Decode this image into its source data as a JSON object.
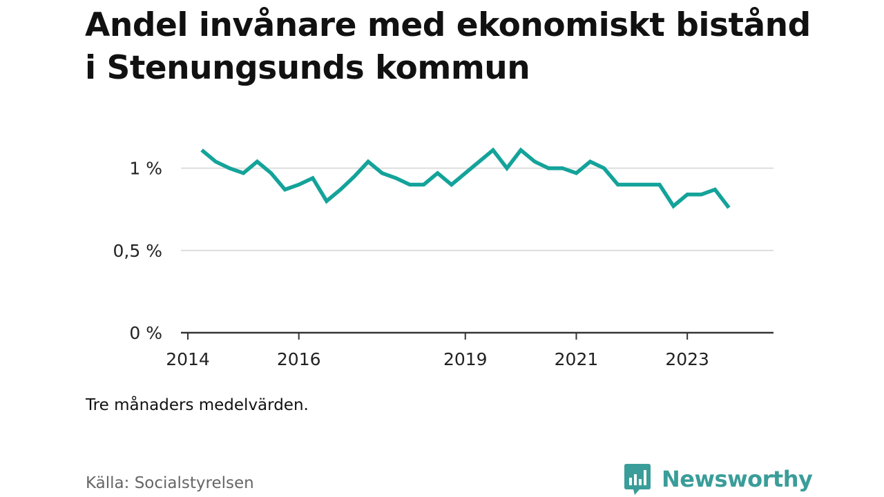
{
  "title": "Andel invånare med ekonomiskt bistånd i Stenungsunds kommun",
  "subtitle": "Tre månaders medelvärden.",
  "source": "Källa: Socialstyrelsen",
  "brand": {
    "name": "Newsworthy",
    "logo_icon": "bar-chart-bubble-icon",
    "color": "#3a9d99"
  },
  "chart_data": {
    "type": "line",
    "title": "Andel invånare med ekonomiskt bistånd i Stenungsunds kommun",
    "xlabel": "",
    "ylabel": "",
    "ylim": [
      0,
      1.2
    ],
    "xlim": [
      "2014-01",
      "2024-06"
    ],
    "grid": true,
    "line_color": "#14a39a",
    "y_ticks": [
      {
        "value": 0,
        "label": "0 %"
      },
      {
        "value": 0.5,
        "label": "0,5 %"
      },
      {
        "value": 1,
        "label": "1 %"
      }
    ],
    "x_ticks": [
      {
        "date": "2014-01",
        "label": "2014"
      },
      {
        "date": "2016-01",
        "label": "2016"
      },
      {
        "date": "2019-01",
        "label": "2019"
      },
      {
        "date": "2021-01",
        "label": "2021"
      },
      {
        "date": "2023-01",
        "label": "2023"
      }
    ],
    "series": [
      {
        "values": [
          {
            "x": "2014-04",
            "y": 1.11
          },
          {
            "x": "2014-07",
            "y": 1.04
          },
          {
            "x": "2014-10",
            "y": 1.0
          },
          {
            "x": "2015-01",
            "y": 0.97
          },
          {
            "x": "2015-04",
            "y": 1.04
          },
          {
            "x": "2015-07",
            "y": 0.97
          },
          {
            "x": "2015-10",
            "y": 0.87
          },
          {
            "x": "2016-01",
            "y": 0.9
          },
          {
            "x": "2016-04",
            "y": 0.94
          },
          {
            "x": "2016-07",
            "y": 0.8
          },
          {
            "x": "2016-10",
            "y": 0.87
          },
          {
            "x": "2017-01",
            "y": 0.95
          },
          {
            "x": "2017-04",
            "y": 1.04
          },
          {
            "x": "2017-07",
            "y": 0.97
          },
          {
            "x": "2017-10",
            "y": 0.94
          },
          {
            "x": "2018-01",
            "y": 0.9
          },
          {
            "x": "2018-04",
            "y": 0.9
          },
          {
            "x": "2018-07",
            "y": 0.97
          },
          {
            "x": "2018-10",
            "y": 0.9
          },
          {
            "x": "2019-01",
            "y": 0.97
          },
          {
            "x": "2019-04",
            "y": 1.04
          },
          {
            "x": "2019-07",
            "y": 1.11
          },
          {
            "x": "2019-10",
            "y": 1.0
          },
          {
            "x": "2020-01",
            "y": 1.11
          },
          {
            "x": "2020-04",
            "y": 1.04
          },
          {
            "x": "2020-07",
            "y": 1.0
          },
          {
            "x": "2020-10",
            "y": 1.0
          },
          {
            "x": "2021-01",
            "y": 0.97
          },
          {
            "x": "2021-04",
            "y": 1.04
          },
          {
            "x": "2021-07",
            "y": 1.0
          },
          {
            "x": "2021-10",
            "y": 0.9
          },
          {
            "x": "2022-01",
            "y": 0.9
          },
          {
            "x": "2022-04",
            "y": 0.9
          },
          {
            "x": "2022-07",
            "y": 0.9
          },
          {
            "x": "2022-10",
            "y": 0.77
          },
          {
            "x": "2023-01",
            "y": 0.84
          },
          {
            "x": "2023-04",
            "y": 0.84
          },
          {
            "x": "2023-07",
            "y": 0.87
          },
          {
            "x": "2023-10",
            "y": 0.76
          }
        ]
      }
    ]
  }
}
